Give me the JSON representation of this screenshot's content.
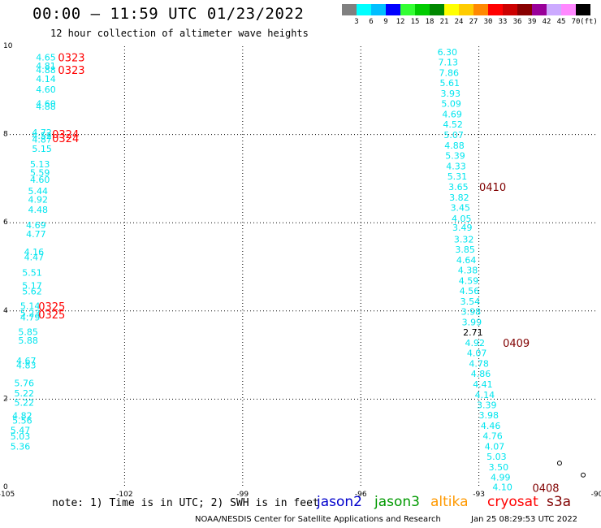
{
  "header": {
    "title": "00:00 — 11:59 UTC 01/23/2022",
    "subtitle": "12 hour collection of altimeter wave heights"
  },
  "legend": {
    "unit": "(ft)",
    "bins": [
      {
        "label": "3",
        "color": "#808080"
      },
      {
        "label": "6",
        "color": "#00ffff"
      },
      {
        "label": "9",
        "color": "#00bfff"
      },
      {
        "label": "12",
        "color": "#0000ff"
      },
      {
        "label": "15",
        "color": "#33ff33"
      },
      {
        "label": "18",
        "color": "#00cc00"
      },
      {
        "label": "21",
        "color": "#008800"
      },
      {
        "label": "24",
        "color": "#ffff00"
      },
      {
        "label": "27",
        "color": "#ffcc00"
      },
      {
        "label": "30",
        "color": "#ff8800"
      },
      {
        "label": "33",
        "color": "#ff0000"
      },
      {
        "label": "36",
        "color": "#cc0000"
      },
      {
        "label": "39",
        "color": "#880000"
      },
      {
        "label": "42",
        "color": "#990099"
      },
      {
        "label": "45",
        "color": "#ccaaff"
      },
      {
        "label": "70",
        "color": "#ff88ff"
      },
      {
        "label": "",
        "color": "#000000"
      }
    ]
  },
  "colors": {
    "swh_low": "#00e5ee",
    "swh_very_low": "#000000",
    "time_red": "#ff0000",
    "time_dark": "#800000",
    "land": "#000000"
  },
  "chart_data": {
    "type": "scatter",
    "xlim": [
      -105,
      -90
    ],
    "ylim": [
      0,
      10
    ],
    "x_ticks": [
      {
        "v": -105,
        "label": "-105"
      },
      {
        "v": -102,
        "label": "-102"
      },
      {
        "v": -99,
        "label": "-99"
      },
      {
        "v": -96,
        "label": "-96"
      },
      {
        "v": -93,
        "label": "-93"
      },
      {
        "v": -90,
        "label": "-90"
      }
    ],
    "y_ticks": [
      {
        "v": 0,
        "label": "0"
      },
      {
        "v": 2,
        "label": "2"
      },
      {
        "v": 4,
        "label": "4"
      },
      {
        "v": 6,
        "label": "6"
      },
      {
        "v": 8,
        "label": "8"
      },
      {
        "v": 10,
        "label": "10"
      }
    ],
    "grid": true,
    "series": [
      {
        "points": [
          {
            "x": -104.0,
            "y": 9.75,
            "v": "4.65"
          },
          {
            "x": -104.0,
            "y": 9.56,
            "v": "4.81"
          },
          {
            "x": -104.0,
            "y": 9.47,
            "v": "4.88"
          },
          {
            "x": -104.0,
            "y": 9.26,
            "v": "4.14"
          },
          {
            "x": -104.0,
            "y": 9.02,
            "v": "4.60"
          },
          {
            "x": -104.0,
            "y": 8.7,
            "v": "4.60"
          },
          {
            "x": -104.0,
            "y": 8.64,
            "v": "4.88"
          },
          {
            "x": -104.1,
            "y": 8.05,
            "v": "4.72"
          },
          {
            "x": -104.1,
            "y": 7.97,
            "v": "4.52"
          },
          {
            "x": -104.1,
            "y": 7.89,
            "v": "4.87"
          },
          {
            "x": -104.1,
            "y": 7.68,
            "v": "5.15"
          },
          {
            "x": -104.15,
            "y": 7.33,
            "v": "5.13"
          },
          {
            "x": -104.15,
            "y": 7.14,
            "v": "5.59"
          },
          {
            "x": -104.15,
            "y": 6.98,
            "v": "4.60"
          },
          {
            "x": -104.2,
            "y": 6.72,
            "v": "5.44"
          },
          {
            "x": -104.2,
            "y": 6.53,
            "v": "4.92"
          },
          {
            "x": -104.2,
            "y": 6.3,
            "v": "4.48"
          },
          {
            "x": -104.25,
            "y": 5.95,
            "v": "4.69"
          },
          {
            "x": -104.25,
            "y": 5.75,
            "v": "4.77"
          },
          {
            "x": -104.3,
            "y": 5.34,
            "v": "4.16"
          },
          {
            "x": -104.3,
            "y": 5.22,
            "v": "4.47"
          },
          {
            "x": -104.35,
            "y": 4.87,
            "v": "5.51"
          },
          {
            "x": -104.35,
            "y": 4.58,
            "v": "5.17"
          },
          {
            "x": -104.35,
            "y": 4.45,
            "v": "5.62"
          },
          {
            "x": -104.4,
            "y": 4.12,
            "v": "5.14"
          },
          {
            "x": -104.4,
            "y": 3.95,
            "v": "5.23"
          },
          {
            "x": -104.4,
            "y": 3.86,
            "v": "4.79"
          },
          {
            "x": -104.45,
            "y": 3.53,
            "v": "5.85"
          },
          {
            "x": -104.45,
            "y": 3.33,
            "v": "5.88"
          },
          {
            "x": -104.5,
            "y": 2.87,
            "v": "4.67"
          },
          {
            "x": -104.5,
            "y": 2.77,
            "v": "4.83"
          },
          {
            "x": -104.55,
            "y": 2.37,
            "v": "5.76"
          },
          {
            "x": -104.55,
            "y": 2.14,
            "v": "5.22"
          },
          {
            "x": -104.55,
            "y": 1.92,
            "v": "5.22"
          },
          {
            "x": -104.6,
            "y": 1.63,
            "v": "4.82"
          },
          {
            "x": -104.6,
            "y": 1.52,
            "v": "5.56"
          },
          {
            "x": -104.65,
            "y": 1.3,
            "v": "5.47"
          },
          {
            "x": -104.65,
            "y": 1.16,
            "v": "5.03"
          },
          {
            "x": -104.65,
            "y": 0.93,
            "v": "5.36"
          },
          {
            "x": -93.8,
            "y": 9.87,
            "v": "6.30"
          },
          {
            "x": -93.78,
            "y": 9.64,
            "v": "7.13"
          },
          {
            "x": -93.76,
            "y": 9.4,
            "v": "7.86"
          },
          {
            "x": -93.74,
            "y": 9.17,
            "v": "5.61"
          },
          {
            "x": -93.72,
            "y": 8.93,
            "v": "3.93"
          },
          {
            "x": -93.7,
            "y": 8.7,
            "v": "5.09"
          },
          {
            "x": -93.68,
            "y": 8.46,
            "v": "4.69"
          },
          {
            "x": -93.66,
            "y": 8.23,
            "v": "4.52"
          },
          {
            "x": -93.64,
            "y": 7.99,
            "v": "5.07"
          },
          {
            "x": -93.62,
            "y": 7.75,
            "v": "4.88"
          },
          {
            "x": -93.6,
            "y": 7.52,
            "v": "5.39"
          },
          {
            "x": -93.58,
            "y": 7.28,
            "v": "4.33"
          },
          {
            "x": -93.55,
            "y": 7.05,
            "v": "5.31"
          },
          {
            "x": -93.52,
            "y": 6.81,
            "v": "3.65"
          },
          {
            "x": -93.5,
            "y": 6.57,
            "v": "3.82"
          },
          {
            "x": -93.47,
            "y": 6.34,
            "v": "3.45"
          },
          {
            "x": -93.44,
            "y": 6.1,
            "v": "4.05"
          },
          {
            "x": -93.42,
            "y": 5.89,
            "v": "3.49"
          },
          {
            "x": -93.38,
            "y": 5.63,
            "v": "3.32"
          },
          {
            "x": -93.35,
            "y": 5.4,
            "v": "3.85"
          },
          {
            "x": -93.32,
            "y": 5.16,
            "v": "4.64"
          },
          {
            "x": -93.28,
            "y": 4.93,
            "v": "4.38"
          },
          {
            "x": -93.26,
            "y": 4.69,
            "v": "4.59"
          },
          {
            "x": -93.24,
            "y": 4.46,
            "v": "4.56"
          },
          {
            "x": -93.22,
            "y": 4.22,
            "v": "3.54"
          },
          {
            "x": -93.2,
            "y": 3.99,
            "v": "3.98"
          },
          {
            "x": -93.18,
            "y": 3.75,
            "v": "3.99"
          },
          {
            "x": -93.15,
            "y": 3.52,
            "v": "2.71"
          },
          {
            "x": -93.1,
            "y": 3.28,
            "v": "4.92"
          },
          {
            "x": -93.05,
            "y": 3.05,
            "v": "4.07"
          },
          {
            "x": -93.0,
            "y": 2.81,
            "v": "4.78"
          },
          {
            "x": -92.95,
            "y": 2.58,
            "v": "4.86"
          },
          {
            "x": -92.9,
            "y": 2.34,
            "v": "4.41"
          },
          {
            "x": -92.85,
            "y": 2.1,
            "v": "4.14"
          },
          {
            "x": -92.8,
            "y": 1.87,
            "v": "3.39"
          },
          {
            "x": -92.75,
            "y": 1.64,
            "v": "3.98"
          },
          {
            "x": -92.7,
            "y": 1.4,
            "v": "4.46"
          },
          {
            "x": -92.65,
            "y": 1.17,
            "v": "4.76"
          },
          {
            "x": -92.6,
            "y": 0.93,
            "v": "4.07"
          },
          {
            "x": -92.55,
            "y": 0.7,
            "v": "5.03"
          },
          {
            "x": -92.5,
            "y": 0.46,
            "v": "3.50"
          },
          {
            "x": -92.45,
            "y": 0.23,
            "v": "4.99"
          },
          {
            "x": -92.4,
            "y": 0.01,
            "v": "4.10"
          }
        ]
      }
    ],
    "times": [
      {
        "x": -103.35,
        "y": 9.75,
        "t": "0323",
        "sat": "cryosat"
      },
      {
        "x": -103.35,
        "y": 9.47,
        "t": "0323",
        "sat": "cryosat"
      },
      {
        "x": -103.5,
        "y": 8.01,
        "t": "0324",
        "sat": "cryosat"
      },
      {
        "x": -103.5,
        "y": 7.92,
        "t": "0324",
        "sat": "cryosat"
      },
      {
        "x": -103.85,
        "y": 4.11,
        "t": "0325",
        "sat": "cryosat"
      },
      {
        "x": -103.85,
        "y": 3.92,
        "t": "0325",
        "sat": "cryosat"
      },
      {
        "x": -92.65,
        "y": 6.81,
        "t": "0410",
        "sat": "s3a"
      },
      {
        "x": -92.05,
        "y": 3.28,
        "t": "0409",
        "sat": "s3a"
      },
      {
        "x": -91.3,
        "y": -0.01,
        "t": "0408",
        "sat": "s3a"
      }
    ],
    "land": [
      {
        "x": -90.95,
        "y": 0.55
      },
      {
        "x": -90.35,
        "y": 0.28
      }
    ]
  },
  "footer": {
    "note": "note: 1) Time is in UTC; 2) SWH is in feet",
    "satellites": [
      {
        "label": "jason2",
        "color": "#0000cc"
      },
      {
        "label": "jason3",
        "color": "#009900"
      },
      {
        "label": "altika",
        "color": "#ff9900"
      },
      {
        "label": "cryosat",
        "color": "#ff0000"
      },
      {
        "label": "s3a",
        "color": "#800000"
      }
    ],
    "credit": "NOAA/NESDIS Center for Satellite Applications and Research",
    "timestamp": "Jan 25 08:29:53 UTC 2022"
  }
}
